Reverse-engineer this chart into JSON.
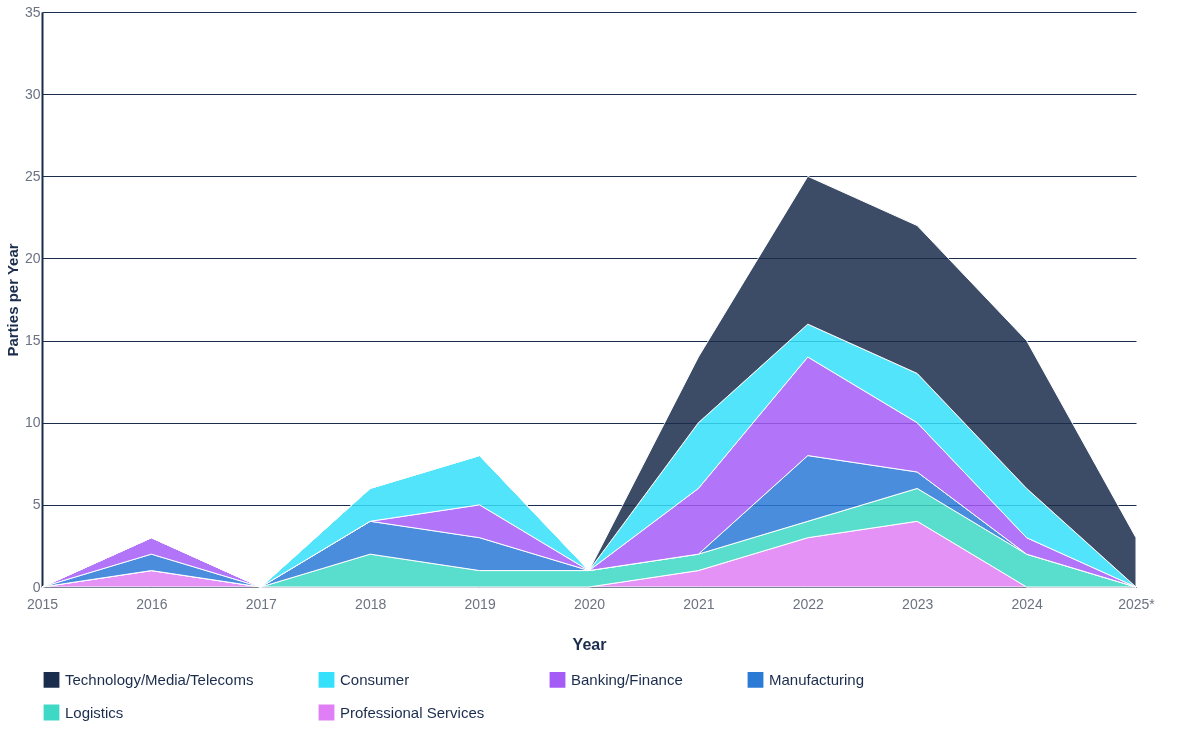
{
  "chart_data": {
    "type": "area",
    "stacked": true,
    "xlabel": "Year",
    "ylabel": "Parties per Year",
    "categories": [
      "2015",
      "2016",
      "2017",
      "2018",
      "2019",
      "2020",
      "2021",
      "2022",
      "2023",
      "2024",
      "2025*"
    ],
    "ylim": [
      0,
      35
    ],
    "yticks": [
      0,
      5,
      10,
      15,
      20,
      25,
      30,
      35
    ],
    "grid": "y",
    "legend": "bottom",
    "series": [
      {
        "name": "Professional Services",
        "color": "#e07ff5",
        "values": [
          0,
          1,
          0,
          0,
          0,
          0,
          1,
          3,
          4,
          0,
          0
        ]
      },
      {
        "name": "Logistics",
        "color": "#3dd9c6",
        "values": [
          0,
          0,
          0,
          2,
          1,
          1,
          1,
          1,
          2,
          2,
          0
        ]
      },
      {
        "name": "Manufacturing",
        "color": "#2a7ad6",
        "values": [
          0,
          1,
          0,
          2,
          2,
          0,
          0,
          4,
          1,
          0,
          0
        ]
      },
      {
        "name": "Banking/Finance",
        "color": "#a55cf7",
        "values": [
          0,
          1,
          0,
          0,
          2,
          0,
          4,
          6,
          3,
          1,
          0
        ]
      },
      {
        "name": "Consumer",
        "color": "#35e0fb",
        "values": [
          0,
          0,
          0,
          2,
          3,
          0,
          4,
          2,
          3,
          3,
          0
        ]
      },
      {
        "name": "Technology/Media/Telecoms",
        "color": "#1b2d4d",
        "values": [
          0,
          0,
          0,
          0,
          0,
          0,
          4,
          9,
          9,
          9,
          3
        ]
      }
    ]
  }
}
